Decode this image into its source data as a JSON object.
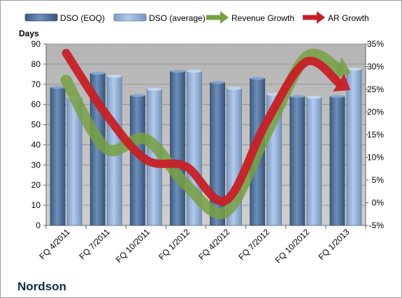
{
  "chart_data": {
    "type": "bar",
    "categories": [
      "FQ 4/2011",
      "FQ 7/2011",
      "FQ 10/2011",
      "FQ 1/2012",
      "FQ 4/2012",
      "FQ 7/2012",
      "FQ 10/2012",
      "FQ 1/2013"
    ],
    "series": [
      {
        "name": "DSO (EOQ)",
        "axis": "left",
        "color": "#4f6f98",
        "values": [
          68.5,
          75.5,
          64.5,
          76.5,
          71,
          73,
          64,
          64
        ]
      },
      {
        "name": "DSO (average)",
        "axis": "left",
        "color": "#8eadd6",
        "values": [
          63.5,
          74,
          67.5,
          76.5,
          68,
          65,
          63.5,
          77.5
        ]
      },
      {
        "name": "Revenue Growth",
        "axis": "right",
        "type": "line",
        "color": "#77a043",
        "values": [
          27,
          12,
          14,
          4,
          -2,
          15,
          32,
          29
        ]
      },
      {
        "name": "AR Growth",
        "axis": "right",
        "type": "line",
        "color": "#c62026",
        "values": [
          33,
          19.5,
          9.5,
          8,
          0.5,
          17.5,
          31,
          25.5
        ]
      }
    ],
    "ylabel": "Days",
    "ylim": [
      0,
      90
    ],
    "y_ticks": [
      "0",
      "10",
      "20",
      "30",
      "40",
      "50",
      "60",
      "70",
      "80",
      "90"
    ],
    "y2lim": [
      -5,
      35
    ],
    "y2_ticks": [
      "-5%",
      "0%",
      "5%",
      "10%",
      "15%",
      "20%",
      "25%",
      "30%",
      "35%"
    ],
    "grid": true,
    "legend_position": "top",
    "plot_background": "#c0c0c0",
    "company": "Nordson"
  }
}
